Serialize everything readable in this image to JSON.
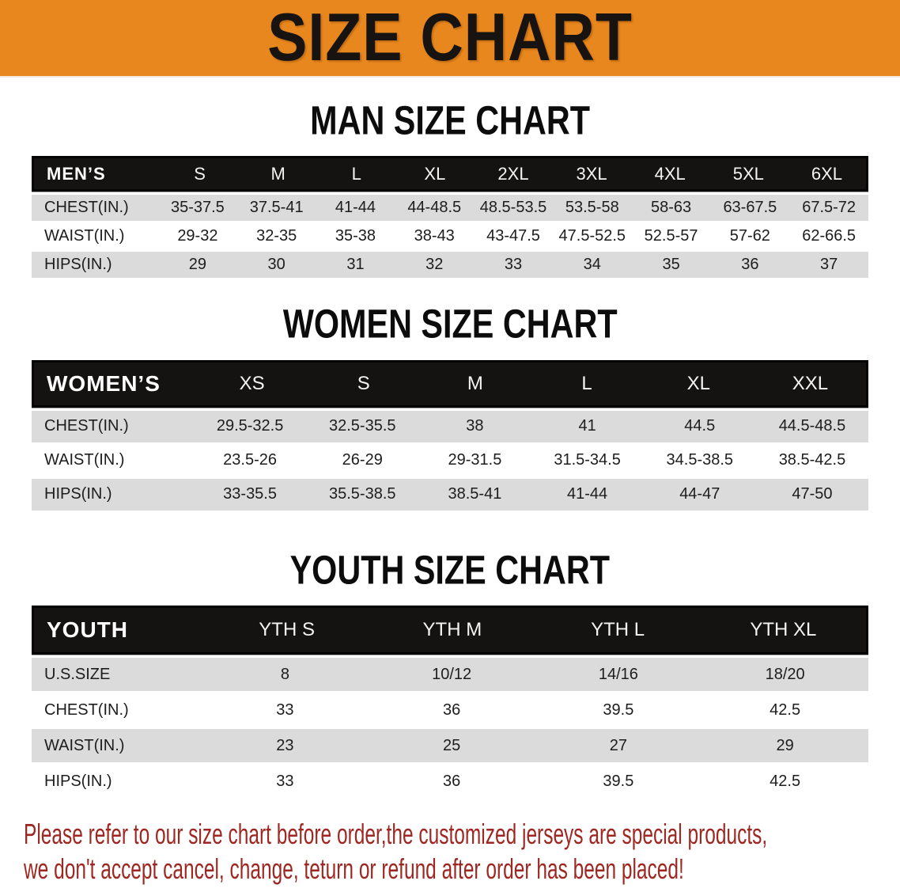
{
  "banner": {
    "title": "SIZE CHART",
    "background": "#E8871E"
  },
  "colors": {
    "header_bar": "#151212",
    "row_gray": "#DBDBDB",
    "row_white": "#FFFFFF",
    "footer_text": "#9E2722"
  },
  "sections": {
    "men": {
      "heading": "MAN SIZE CHART",
      "table": {
        "header": [
          "MEN’S",
          "S",
          "M",
          "L",
          "XL",
          "2XL",
          "3XL",
          "4XL",
          "5XL",
          "6XL"
        ],
        "rows": [
          {
            "label": "CHEST(IN.)",
            "values": [
              "35-37.5",
              "37.5-41",
              "41-44",
              "44-48.5",
              "48.5-53.5",
              "53.5-58",
              "58-63",
              "63-67.5",
              "67.5-72"
            ]
          },
          {
            "label": "WAIST(IN.)",
            "values": [
              "29-32",
              "32-35",
              "35-38",
              "38-43",
              "43-47.5",
              "47.5-52.5",
              "52.5-57",
              "57-62",
              "62-66.5"
            ]
          },
          {
            "label": "HIPS(IN.)",
            "values": [
              "29",
              "30",
              "31",
              "32",
              "33",
              "34",
              "35",
              "36",
              "37"
            ]
          }
        ]
      }
    },
    "women": {
      "heading": "WOMEN SIZE CHART",
      "table": {
        "header": [
          "WOMEN’S",
          "XS",
          "S",
          "M",
          "L",
          "XL",
          "XXL"
        ],
        "rows": [
          {
            "label": "CHEST(IN.)",
            "values": [
              "29.5-32.5",
              "32.5-35.5",
              "38",
              "41",
              "44.5",
              "44.5-48.5"
            ]
          },
          {
            "label": "WAIST(IN.)",
            "values": [
              "23.5-26",
              "26-29",
              "29-31.5",
              "31.5-34.5",
              "34.5-38.5",
              "38.5-42.5"
            ]
          },
          {
            "label": "HIPS(IN.)",
            "values": [
              "33-35.5",
              "35.5-38.5",
              "38.5-41",
              "41-44",
              "44-47",
              "47-50"
            ]
          }
        ]
      }
    },
    "youth": {
      "heading": "YOUTH SIZE CHART",
      "table": {
        "header": [
          "YOUTH",
          "YTH S",
          "YTH M",
          "YTH L",
          "YTH XL"
        ],
        "rows": [
          {
            "label": "U.S.SIZE",
            "values": [
              "8",
              "10/12",
              "14/16",
              "18/20"
            ]
          },
          {
            "label": "CHEST(IN.)",
            "values": [
              "33",
              "36",
              "39.5",
              "42.5"
            ]
          },
          {
            "label": "WAIST(IN.)",
            "values": [
              "23",
              "25",
              "27",
              "29"
            ]
          },
          {
            "label": "HIPS(IN.)",
            "values": [
              "33",
              "36",
              "39.5",
              "42.5"
            ]
          }
        ]
      }
    }
  },
  "footer": {
    "line1": "Please refer to our size chart before order,the customized jerseys are special products,",
    "line2": "we don't accept cancel, change, teturn or refund after order has been placed!"
  }
}
